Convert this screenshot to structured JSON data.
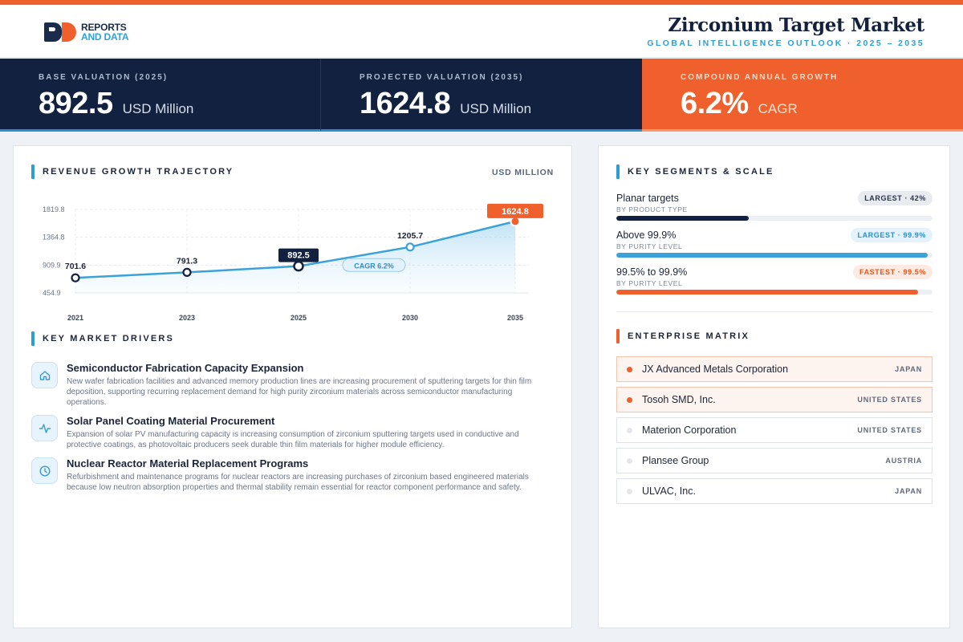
{
  "header": {
    "logo_line1": "REPORTS",
    "logo_line2": "AND DATA",
    "title": "Zirconium Target Market",
    "subtitle": "GLOBAL INTELLIGENCE OUTLOOK  ·  2025 – 2035"
  },
  "kpis": [
    {
      "label": "BASE VALUATION (2025)",
      "value": "892.5",
      "unit": "USD Million"
    },
    {
      "label": "PROJECTED VALUATION (2035)",
      "value": "1624.8",
      "unit": "USD Million"
    },
    {
      "label": "COMPOUND ANNUAL GROWTH",
      "value": "6.2%",
      "unit": "CAGR"
    }
  ],
  "revenue": {
    "title": "REVENUE GROWTH TRAJECTORY",
    "unit_tag": "USD MILLION",
    "cagr_label": "CAGR 6.2%"
  },
  "chart_data": {
    "type": "area",
    "title": "REVENUE GROWTH TRAJECTORY",
    "ylabel": "USD MILLION",
    "x": [
      "2021",
      "2023",
      "2025",
      "2030",
      "2035"
    ],
    "values": [
      701.6,
      791.3,
      892.5,
      1205.7,
      1624.8
    ],
    "value_labels": [
      "701.6",
      "791.3",
      "892.5",
      "1205.7",
      "1624.8"
    ],
    "yticks": [
      "1819.8",
      "1364.8",
      "909.9",
      "454.9"
    ],
    "ytick_values": [
      1819.8,
      1364.8,
      909.9,
      454.9
    ],
    "ylim": [
      454.9,
      1819.8
    ],
    "annotation": "CAGR 6.2%",
    "grid": true,
    "colors": {
      "line": "#3ba2d9",
      "accent": "#f0602c",
      "base": "#12213f"
    }
  },
  "drivers": {
    "title": "KEY MARKET DRIVERS",
    "items": [
      {
        "icon": "home-icon",
        "title": "Semiconductor Fabrication Capacity Expansion",
        "text": "New wafer fabrication facilities and advanced memory production lines are increasing procurement of sputtering targets for thin film deposition, supporting recurring replacement demand for high purity zirconium materials across semiconductor manufacturing operations."
      },
      {
        "icon": "activity-icon",
        "title": "Solar Panel Coating Material Procurement",
        "text": "Expansion of solar PV manufacturing capacity is increasing consumption of zirconium sputtering targets used in conductive and protective coatings, as photovoltaic producers seek durable thin film materials for higher module efficiency."
      },
      {
        "icon": "clock-icon",
        "title": "Nuclear Reactor Material Replacement Programs",
        "text": "Refurbishment and maintenance programs for nuclear reactors are increasing purchases of zirconium based engineered materials because low neutron absorption properties and thermal stability remain essential for reactor component performance and safety."
      }
    ]
  },
  "segments": {
    "title": "KEY SEGMENTS & SCALE",
    "items": [
      {
        "name": "Planar targets",
        "type": "BY PRODUCT TYPE",
        "badge": "LARGEST · 42%",
        "fill": 0.42,
        "color": "#12213f",
        "badge_bg": "#e8ebf0",
        "badge_fg": "#2a3448"
      },
      {
        "name": "Above 99.9%",
        "type": "BY PURITY LEVEL",
        "badge": "LARGEST · 99.9%",
        "fill": 0.985,
        "color": "#3ba2d9",
        "badge_bg": "#e4f3fb",
        "badge_fg": "#2a8fc7"
      },
      {
        "name": "99.5% to 99.9%",
        "type": "BY PURITY LEVEL",
        "badge": "FASTEST · 99.5%",
        "fill": 0.955,
        "color": "#f0602c",
        "badge_bg": "#fdeae2",
        "badge_fg": "#e2551f"
      }
    ]
  },
  "enterprise": {
    "title": "ENTERPRISE MATRIX",
    "items": [
      {
        "name": "JX Advanced Metals Corporation",
        "country": "JAPAN",
        "highlight": true
      },
      {
        "name": "Tosoh SMD, Inc.",
        "country": "UNITED STATES",
        "highlight": true
      },
      {
        "name": "Materion Corporation",
        "country": "UNITED STATES",
        "highlight": false
      },
      {
        "name": "Plansee Group",
        "country": "AUSTRIA",
        "highlight": false
      },
      {
        "name": "ULVAC, Inc.",
        "country": "JAPAN",
        "highlight": false
      }
    ]
  }
}
